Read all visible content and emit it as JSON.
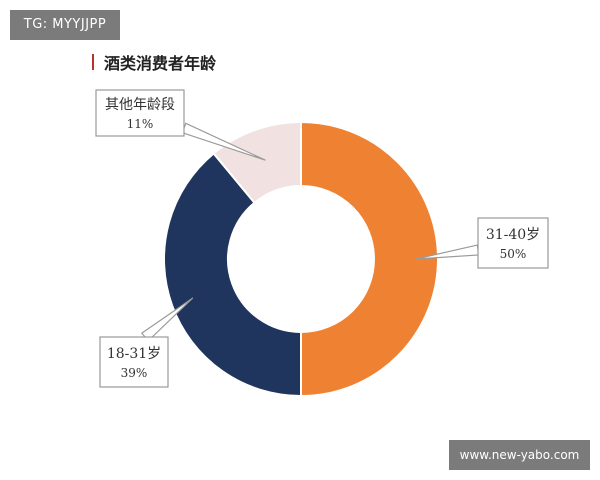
{
  "watermark_top": "TG: MYYJJPP",
  "watermark_bottom": "www.new-yabo.com",
  "chart_data": {
    "type": "pie",
    "variant": "donut",
    "title": "酒类消费者年龄",
    "slices": [
      {
        "label": "31-40岁",
        "value": 50,
        "display": "50%",
        "color": "#ef8132"
      },
      {
        "label": "18-31岁",
        "value": 39,
        "display": "39%",
        "color": "#1f355e"
      },
      {
        "label": "其他年龄段",
        "value": 11,
        "display": "11%",
        "color": "#f1e1e1"
      }
    ],
    "legend": "callouts"
  }
}
